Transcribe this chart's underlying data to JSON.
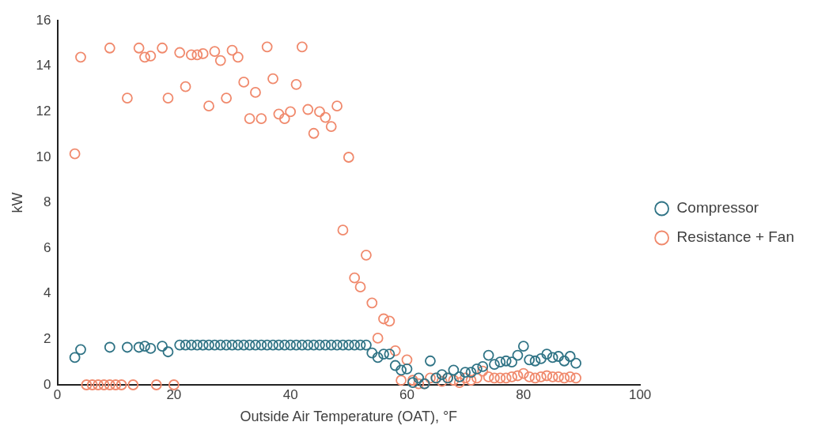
{
  "chart_data": {
    "type": "scatter",
    "xlabel": "Outside Air Temperature (OAT), °F",
    "ylabel": "kW",
    "xlim": [
      0,
      100
    ],
    "xticks": [
      0,
      20,
      40,
      60,
      80,
      100
    ],
    "ylim": [
      0,
      16
    ],
    "yticks": [
      0,
      2,
      4,
      6,
      8,
      10,
      12,
      14,
      16
    ],
    "grid": false,
    "legend": "right",
    "marker": "circle",
    "series": [
      {
        "name": "Compressor",
        "color": "#2f7385",
        "x": [
          3,
          4,
          9,
          12,
          14,
          15,
          16,
          18,
          19,
          21,
          22,
          23,
          24,
          25,
          26,
          27,
          28,
          29,
          30,
          31,
          32,
          33,
          34,
          35,
          36,
          37,
          38,
          39,
          40,
          41,
          42,
          43,
          44,
          45,
          46,
          47,
          48,
          49,
          50,
          51,
          52,
          53,
          54,
          55,
          56,
          57,
          58,
          59,
          60,
          61,
          62,
          63,
          64,
          65,
          66,
          67,
          68,
          69,
          70,
          71,
          72,
          73,
          74,
          75,
          76,
          77,
          78,
          79,
          80,
          81,
          82,
          83,
          84,
          85,
          86,
          87,
          88,
          89
        ],
        "values": [
          1.2,
          1.55,
          1.65,
          1.65,
          1.65,
          1.7,
          1.6,
          1.7,
          1.45,
          1.75,
          1.75,
          1.75,
          1.75,
          1.75,
          1.75,
          1.75,
          1.75,
          1.75,
          1.75,
          1.75,
          1.75,
          1.75,
          1.75,
          1.75,
          1.75,
          1.75,
          1.75,
          1.75,
          1.75,
          1.75,
          1.75,
          1.75,
          1.75,
          1.75,
          1.75,
          1.75,
          1.75,
          1.75,
          1.75,
          1.75,
          1.75,
          1.75,
          1.4,
          1.2,
          1.35,
          1.35,
          0.85,
          0.65,
          0.7,
          0.1,
          0.3,
          0.05,
          1.05,
          0.3,
          0.45,
          0.3,
          0.65,
          0.35,
          0.55,
          0.55,
          0.7,
          0.8,
          1.3,
          0.9,
          1.0,
          1.05,
          1.0,
          1.3,
          1.7,
          1.1,
          1.05,
          1.15,
          1.35,
          1.2,
          1.25,
          1.05,
          1.25,
          0.95
        ]
      },
      {
        "name": "Resistance + Fan",
        "color": "#f0896c",
        "x": [
          3,
          4,
          5,
          6,
          7,
          8,
          9,
          9,
          10,
          11,
          12,
          13,
          14,
          15,
          16,
          17,
          18,
          19,
          20,
          21,
          22,
          23,
          24,
          25,
          26,
          27,
          28,
          29,
          30,
          31,
          32,
          33,
          34,
          35,
          36,
          37,
          38,
          39,
          40,
          41,
          42,
          43,
          44,
          45,
          46,
          47,
          48,
          49,
          50,
          51,
          52,
          53,
          54,
          55,
          56,
          57,
          58,
          59,
          60,
          61,
          62,
          63,
          64,
          65,
          66,
          67,
          68,
          69,
          70,
          71,
          72,
          73,
          74,
          75,
          76,
          77,
          78,
          79,
          80,
          81,
          82,
          83,
          84,
          85,
          86,
          87,
          88,
          89
        ],
        "values": [
          10.15,
          14.4,
          0,
          0,
          0,
          0,
          14.8,
          0,
          0,
          0,
          12.6,
          0,
          14.8,
          14.4,
          14.45,
          0,
          14.8,
          12.6,
          0,
          14.6,
          13.1,
          14.5,
          14.5,
          14.55,
          12.25,
          14.65,
          14.25,
          12.6,
          14.7,
          14.4,
          13.3,
          11.7,
          12.85,
          11.7,
          14.85,
          13.45,
          11.9,
          11.7,
          12.0,
          13.2,
          14.85,
          12.1,
          11.05,
          12.0,
          11.75,
          11.35,
          12.25,
          6.8,
          10.0,
          4.7,
          4.3,
          5.7,
          3.6,
          2.05,
          2.9,
          2.8,
          1.5,
          0.2,
          1.1,
          0.2,
          0.05,
          0.05,
          0.3,
          0.3,
          0.15,
          0.3,
          0.2,
          0.1,
          0.3,
          0.2,
          0.3,
          0.6,
          0.35,
          0.3,
          0.3,
          0.3,
          0.35,
          0.4,
          0.5,
          0.35,
          0.3,
          0.35,
          0.4,
          0.35,
          0.35,
          0.3,
          0.35,
          0.3
        ]
      }
    ]
  }
}
